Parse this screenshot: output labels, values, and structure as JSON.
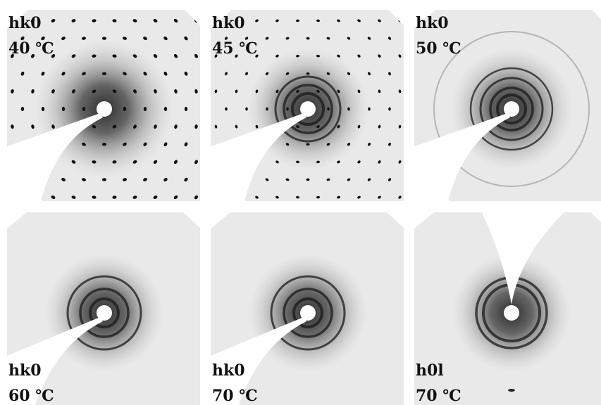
{
  "panels": [
    {
      "plane": "hk0",
      "temperature": "40 ℃"
    },
    {
      "plane": "hk0",
      "temperature": "45 ℃"
    },
    {
      "plane": "hk0",
      "temperature": "50 ℃"
    },
    {
      "plane": "hk0",
      "temperature": "60 ℃"
    },
    {
      "plane": "hk0",
      "temperature": "70 ℃"
    },
    {
      "plane": "h0l",
      "temperature": "70 ℃"
    }
  ]
}
